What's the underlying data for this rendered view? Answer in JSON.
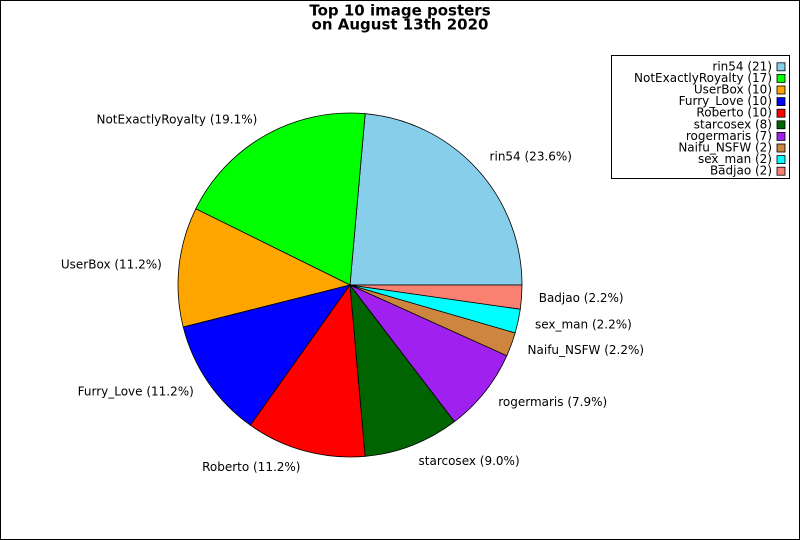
{
  "chart_data": {
    "type": "pie",
    "title": [
      "Top 10 image posters",
      "on August 13th 2020"
    ],
    "categories": [
      "rin54",
      "NotExactlyRoyalty",
      "UserBox",
      "Furry_Love",
      "Roberto",
      "starcosex",
      "rogermaris",
      "Naifu_NSFW",
      "sex_man",
      "Badjao"
    ],
    "values": [
      21,
      17,
      10,
      10,
      10,
      8,
      7,
      2,
      2,
      2
    ],
    "slice_labels": [
      "rin54 (23.6%)",
      "NotExactlyRoyalty (19.1%)",
      "UserBox (11.2%)",
      "Furry_Love (11.2%)",
      "Roberto (11.2%)",
      "starcosex (9.0%)",
      "rogermaris (7.9%)",
      "Naifu_NSFW (2.2%)",
      "sex_man (2.2%)",
      "Badjao (2.2%)"
    ],
    "legend_labels": [
      "rin54 (21)",
      "NotExactlyRoyalty (17)",
      "UserBox (10)",
      "Furry_Love (10)",
      "Roberto (10)",
      "starcosex (8)",
      "rogermaris (7)",
      "Naifu_NSFW (2)",
      "sex_man (2)",
      "Badjao (2)"
    ],
    "colors": [
      "#87ceeb",
      "#00ff00",
      "#ffa500",
      "#0000ff",
      "#ff0000",
      "#006400",
      "#a020f0",
      "#cd853f",
      "#00ffff",
      "#fa8072"
    ],
    "legend_position": "upper right"
  }
}
